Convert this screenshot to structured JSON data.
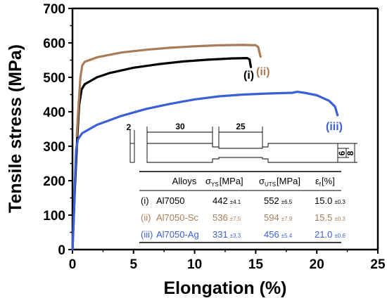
{
  "chart_data": {
    "type": "line",
    "title": "",
    "xlabel": "Elongation (%)",
    "ylabel": "Tensile stress (MPa)",
    "xlim": [
      0,
      25
    ],
    "ylim": [
      0,
      700
    ],
    "xticks": [
      0,
      5,
      10,
      15,
      20,
      25
    ],
    "yticks": [
      0,
      100,
      200,
      300,
      400,
      500,
      600,
      700
    ],
    "grid": false,
    "series": [
      {
        "label": "(i)",
        "color": "#000000",
        "points": [
          [
            0,
            0
          ],
          [
            0.2,
            180
          ],
          [
            0.4,
            330
          ],
          [
            0.55,
            420
          ],
          [
            0.75,
            465
          ],
          [
            1.0,
            480
          ],
          [
            2,
            500
          ],
          [
            3,
            512
          ],
          [
            5,
            528
          ],
          [
            7,
            538
          ],
          [
            9,
            546
          ],
          [
            11,
            551
          ],
          [
            13,
            555
          ],
          [
            14.3,
            556
          ],
          [
            14.5,
            552
          ],
          [
            14.6,
            530
          ]
        ]
      },
      {
        "label": "(ii)",
        "color": "#a97c57",
        "points": [
          [
            0.35,
            330
          ],
          [
            0.5,
            420
          ],
          [
            0.65,
            500
          ],
          [
            0.8,
            535
          ],
          [
            1.0,
            545
          ],
          [
            2,
            558
          ],
          [
            4,
            572
          ],
          [
            6,
            580
          ],
          [
            8,
            586
          ],
          [
            10,
            590
          ],
          [
            12,
            593
          ],
          [
            14,
            594
          ],
          [
            15.0,
            593
          ],
          [
            15.2,
            588
          ],
          [
            15.4,
            560
          ]
        ]
      },
      {
        "label": "(iii)",
        "color": "#3b5fd6",
        "points": [
          [
            0,
            0
          ],
          [
            0.1,
            80
          ],
          [
            0.2,
            200
          ],
          [
            0.3,
            290
          ],
          [
            0.45,
            320
          ],
          [
            0.8,
            338
          ],
          [
            2,
            362
          ],
          [
            4,
            388
          ],
          [
            6,
            408
          ],
          [
            8,
            423
          ],
          [
            10,
            436
          ],
          [
            12,
            445
          ],
          [
            14,
            450
          ],
          [
            16,
            453
          ],
          [
            18,
            455
          ],
          [
            18.4,
            458
          ],
          [
            19,
            455
          ],
          [
            20,
            448
          ],
          [
            21,
            432
          ],
          [
            21.5,
            415
          ],
          [
            21.7,
            390
          ]
        ]
      }
    ],
    "annotations": [
      "(i)",
      "(ii)",
      "(iii)"
    ],
    "specimen_dimensions": [
      "2",
      "30",
      "25",
      "6",
      "8"
    ]
  },
  "inset_table": {
    "headers": {
      "alloys": "Alloys",
      "ys_sym": "σ",
      "ys_sub": "YS",
      "ys_unit": "[MPa]",
      "uts_sym": "σ",
      "uts_sub": "UTS",
      "uts_unit": "[MPa]",
      "ef_sym": "ε",
      "ef_sub": "f",
      "ef_unit": "[%]"
    },
    "rows": [
      {
        "idx": "(i)",
        "name": "Al7050",
        "ys": "442",
        "ys_err": "±4.1",
        "uts": "552",
        "uts_err": "±6.5",
        "ef": "15.0",
        "ef_err": "±0.3",
        "color": "#000000"
      },
      {
        "idx": "(ii)",
        "name": "Al7050-Sc",
        "ys": "536",
        "ys_err": "±7.5",
        "uts": "594",
        "uts_err": "±7.9",
        "ef": "15.5",
        "ef_err": "±0.3",
        "color": "#a97c57"
      },
      {
        "idx": "(iii)",
        "name": "Al7050-Ag",
        "ys": "331",
        "ys_err": "±3.3",
        "uts": "456",
        "uts_err": "±5.4",
        "ef": "21.0",
        "ef_err": "±0.6",
        "color": "#3b5fd6"
      }
    ]
  }
}
